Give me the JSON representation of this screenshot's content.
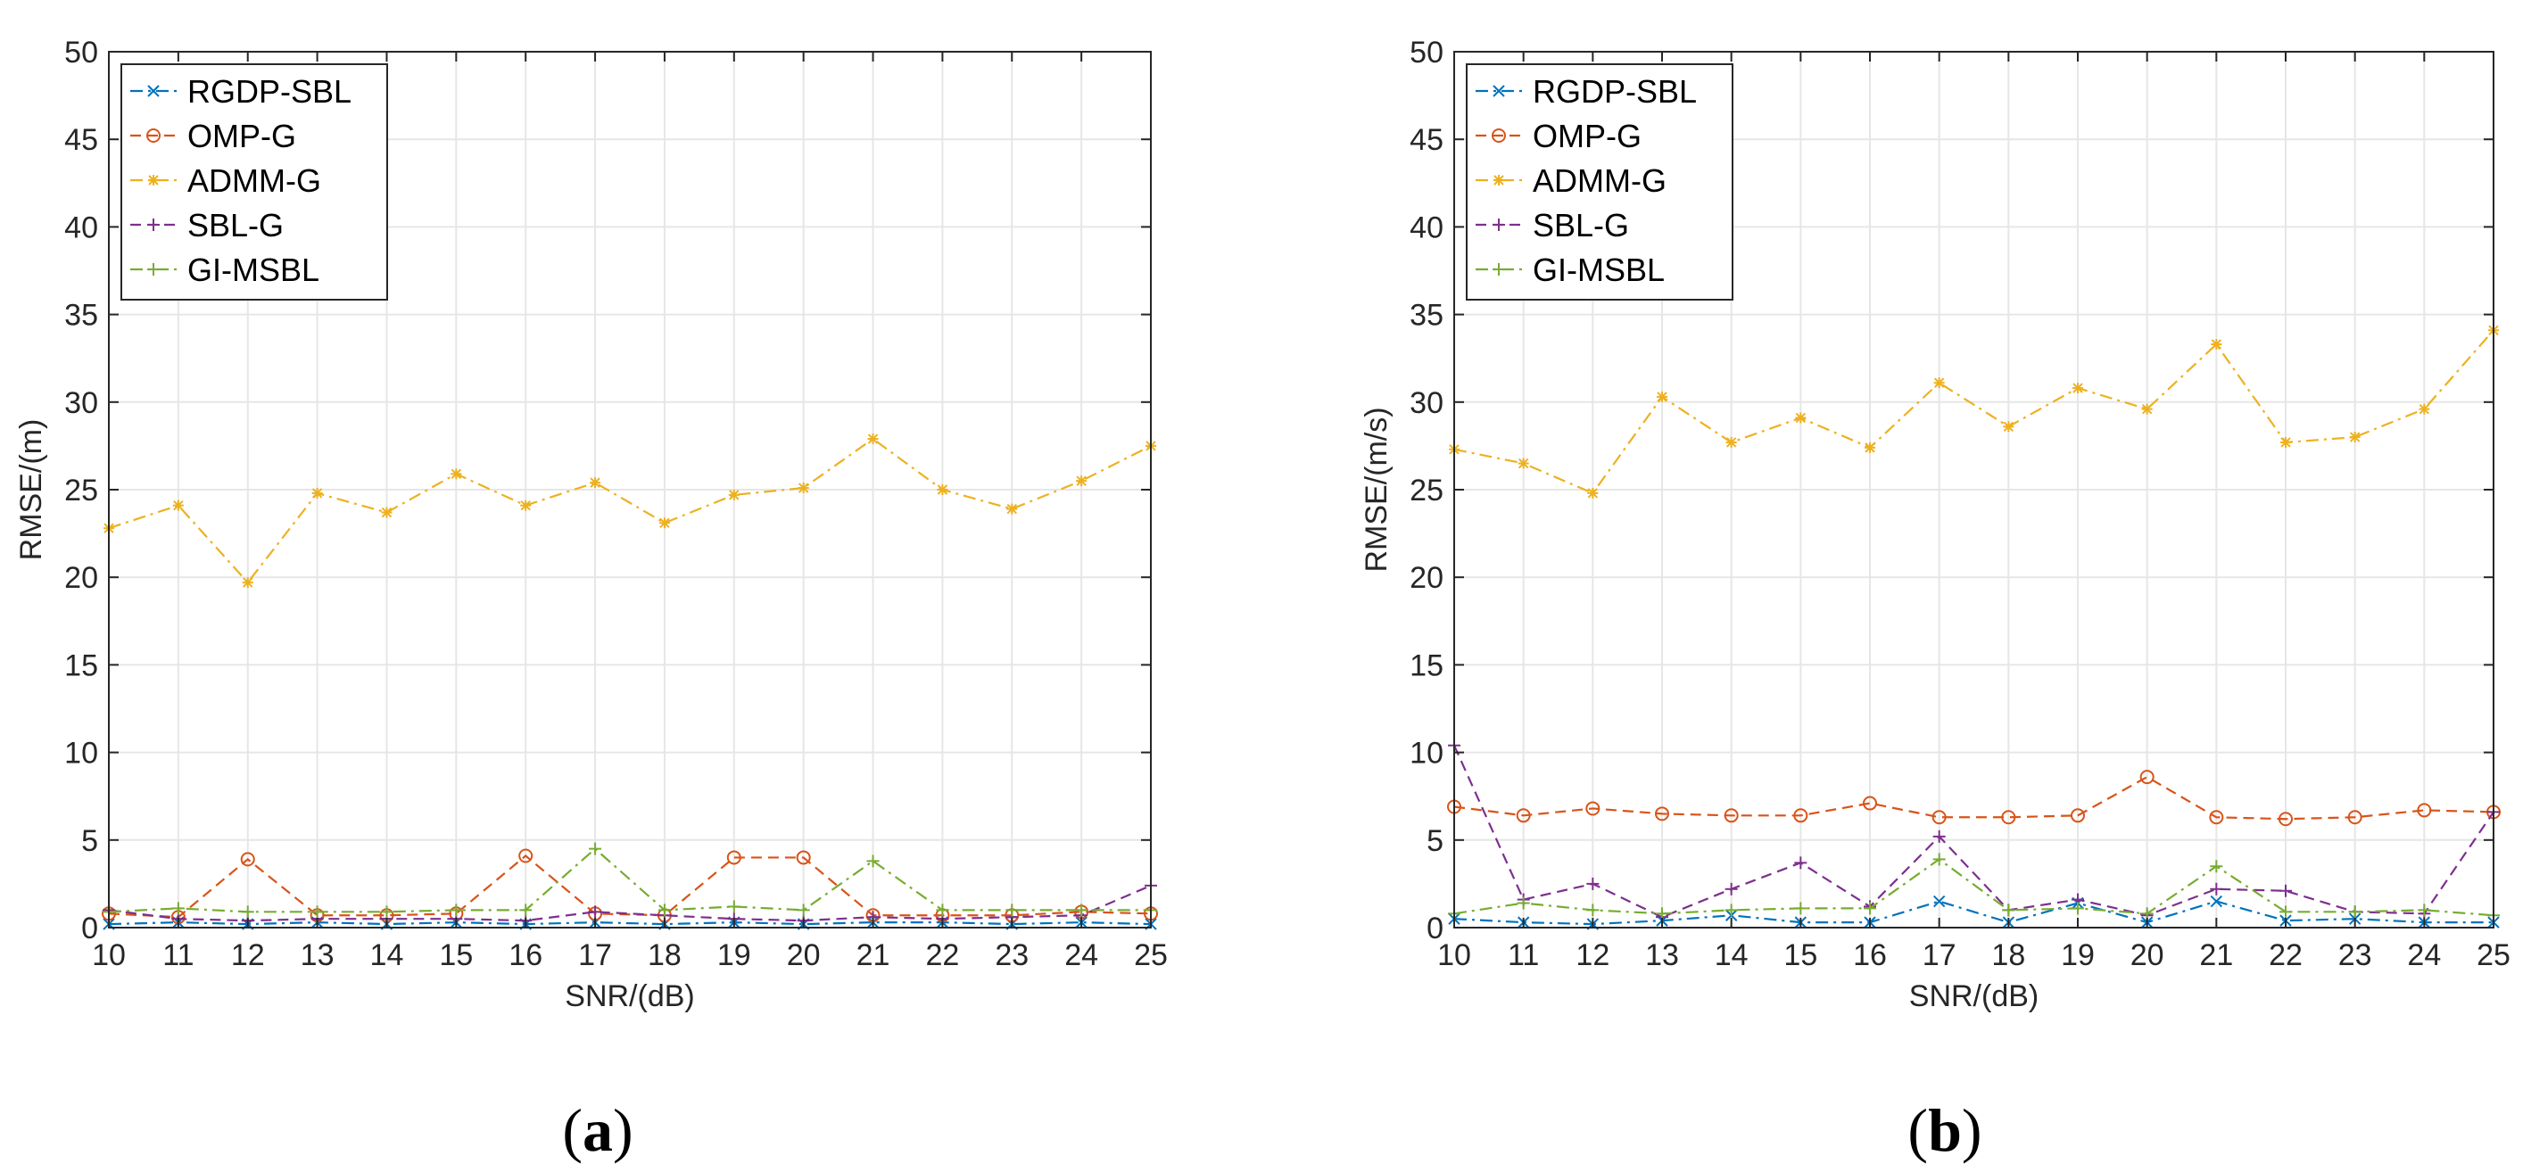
{
  "chart_data": [
    {
      "type": "line",
      "panel_caption": "(a)",
      "caption_open": "(",
      "caption_letter": "a",
      "caption_close": ")",
      "xlabel": "SNR/(dB)",
      "ylabel": "RMSE/(m)",
      "xlim": [
        10,
        25
      ],
      "ylim": [
        0,
        50
      ],
      "xticks": [
        10,
        11,
        12,
        13,
        14,
        15,
        16,
        17,
        18,
        19,
        20,
        21,
        22,
        23,
        24,
        25
      ],
      "yticks": [
        0,
        5,
        10,
        15,
        20,
        25,
        30,
        35,
        40,
        45,
        50
      ],
      "grid": true,
      "legend_position": "top-left",
      "x": [
        10,
        11,
        12,
        13,
        14,
        15,
        16,
        17,
        18,
        19,
        20,
        21,
        22,
        23,
        24,
        25
      ],
      "series": [
        {
          "name": "RGDP-SBL",
          "color": "#0072BD",
          "dash": "dashdot",
          "marker": "x",
          "values": [
            0.2,
            0.3,
            0.2,
            0.3,
            0.2,
            0.3,
            0.2,
            0.3,
            0.2,
            0.3,
            0.2,
            0.3,
            0.3,
            0.2,
            0.3,
            0.2
          ]
        },
        {
          "name": "OMP-G",
          "color": "#D95319",
          "dash": "dashed",
          "marker": "circle",
          "values": [
            0.8,
            0.6,
            3.9,
            0.7,
            0.7,
            0.8,
            4.1,
            0.8,
            0.7,
            4.0,
            4.0,
            0.7,
            0.7,
            0.7,
            0.9,
            0.8
          ]
        },
        {
          "name": "ADMM-G",
          "color": "#EDB120",
          "dash": "dashdot",
          "marker": "asterisk",
          "values": [
            22.8,
            24.1,
            19.7,
            24.8,
            23.7,
            25.9,
            24.1,
            25.4,
            23.1,
            24.7,
            25.1,
            27.9,
            25.0,
            23.9,
            25.5,
            27.5
          ]
        },
        {
          "name": "SBL-G",
          "color": "#7E2F8E",
          "dash": "dashed",
          "marker": "plus",
          "values": [
            1.0,
            0.5,
            0.4,
            0.5,
            0.5,
            0.5,
            0.4,
            0.9,
            0.7,
            0.5,
            0.4,
            0.6,
            0.5,
            0.6,
            0.7,
            2.4
          ]
        },
        {
          "name": "GI-MSBL",
          "color": "#77AC30",
          "dash": "dashdot",
          "marker": "plus",
          "values": [
            0.9,
            1.1,
            0.9,
            0.9,
            0.9,
            1.0,
            1.0,
            4.5,
            1.0,
            1.2,
            1.0,
            3.8,
            1.0,
            1.0,
            1.0,
            1.0
          ]
        }
      ]
    },
    {
      "type": "line",
      "panel_caption": "(b)",
      "caption_open": "(",
      "caption_letter": "b",
      "caption_close": ")",
      "xlabel": "SNR/(dB)",
      "ylabel": "RMSE/(m/s)",
      "xlim": [
        10,
        25
      ],
      "ylim": [
        0,
        50
      ],
      "xticks": [
        10,
        11,
        12,
        13,
        14,
        15,
        16,
        17,
        18,
        19,
        20,
        21,
        22,
        23,
        24,
        25
      ],
      "yticks": [
        0,
        5,
        10,
        15,
        20,
        25,
        30,
        35,
        40,
        45,
        50
      ],
      "grid": true,
      "legend_position": "top-left",
      "x": [
        10,
        11,
        12,
        13,
        14,
        15,
        16,
        17,
        18,
        19,
        20,
        21,
        22,
        23,
        24,
        25
      ],
      "series": [
        {
          "name": "RGDP-SBL",
          "color": "#0072BD",
          "dash": "dashdot",
          "marker": "x",
          "values": [
            0.5,
            0.3,
            0.2,
            0.4,
            0.7,
            0.3,
            0.3,
            1.5,
            0.3,
            1.4,
            0.3,
            1.5,
            0.4,
            0.5,
            0.3,
            0.3
          ]
        },
        {
          "name": "OMP-G",
          "color": "#D95319",
          "dash": "dashed",
          "marker": "circle",
          "values": [
            6.9,
            6.4,
            6.8,
            6.5,
            6.4,
            6.4,
            7.1,
            6.3,
            6.3,
            6.4,
            8.6,
            6.3,
            6.2,
            6.3,
            6.7,
            6.6
          ]
        },
        {
          "name": "ADMM-G",
          "color": "#EDB120",
          "dash": "dashdot",
          "marker": "asterisk",
          "values": [
            27.3,
            26.5,
            24.8,
            30.3,
            27.7,
            29.1,
            27.4,
            31.1,
            28.6,
            30.8,
            29.6,
            33.3,
            27.7,
            28.0,
            29.6,
            34.1
          ]
        },
        {
          "name": "SBL-G",
          "color": "#7E2F8E",
          "dash": "dashed",
          "marker": "plus",
          "values": [
            10.4,
            1.6,
            2.5,
            0.6,
            2.2,
            3.7,
            1.2,
            5.2,
            1.0,
            1.6,
            0.7,
            2.2,
            2.1,
            0.9,
            0.8,
            6.6
          ]
        },
        {
          "name": "GI-MSBL",
          "color": "#77AC30",
          "dash": "dashdot",
          "marker": "plus",
          "values": [
            0.8,
            1.4,
            1.0,
            0.8,
            1.0,
            1.1,
            1.1,
            3.9,
            1.0,
            1.1,
            0.8,
            3.5,
            0.9,
            0.9,
            1.0,
            0.7
          ]
        }
      ]
    }
  ]
}
